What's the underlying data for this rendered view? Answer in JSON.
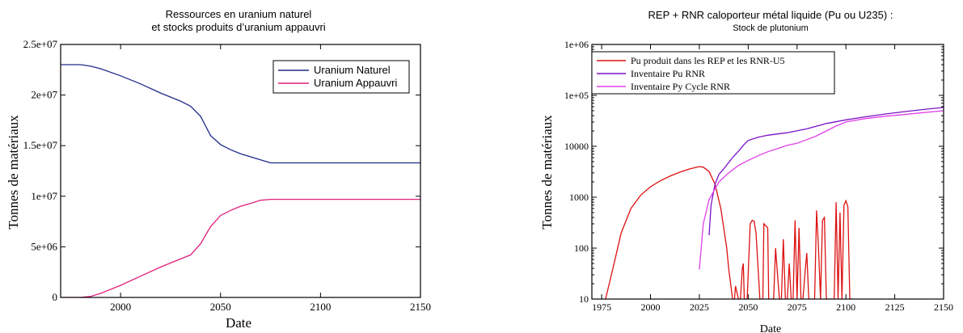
{
  "chart_data": [
    {
      "type": "line",
      "title": "Ressources en uranium naturel",
      "subtitle": "et stocks produits d’uranium appauvri",
      "xlabel": "Date",
      "ylabel": "Tonnes de matériaux",
      "xlim": [
        1970,
        2150
      ],
      "ylim": [
        0,
        25000000
      ],
      "x_ticks": [
        2000,
        2050,
        2100,
        2150
      ],
      "y_ticks": [
        0,
        5000000,
        10000000,
        15000000,
        20000000,
        25000000
      ],
      "y_tick_labels": [
        "0",
        "5e+06",
        "1e+07",
        "1.5e+07",
        "2e+07",
        "2.5e+07"
      ],
      "grid": false,
      "legend_position": "top-right",
      "series": [
        {
          "name": "Uranium Naturel",
          "color": "#1f2a8a",
          "x": [
            1970,
            1980,
            1985,
            1990,
            2000,
            2010,
            2020,
            2030,
            2035,
            2040,
            2045,
            2050,
            2055,
            2060,
            2065,
            2070,
            2075,
            2080,
            2100,
            2125,
            2150
          ],
          "y": [
            23000000,
            23000000,
            22850000,
            22600000,
            21900000,
            21100000,
            20200000,
            19400000,
            18900000,
            17900000,
            16000000,
            15100000,
            14600000,
            14200000,
            13900000,
            13600000,
            13300000,
            13300000,
            13300000,
            13300000,
            13300000
          ]
        },
        {
          "name": "Uranium Appauvri",
          "color": "#e0207a",
          "x": [
            1970,
            1980,
            1985,
            1990,
            2000,
            2010,
            2020,
            2030,
            2035,
            2040,
            2045,
            2050,
            2055,
            2060,
            2065,
            2070,
            2075,
            2080,
            2100,
            2125,
            2150
          ],
          "y": [
            0,
            0,
            100000,
            400000,
            1200000,
            2100000,
            3000000,
            3800000,
            4200000,
            5300000,
            7000000,
            8100000,
            8600000,
            9000000,
            9300000,
            9600000,
            9700000,
            9700000,
            9700000,
            9700000,
            9700000
          ]
        }
      ]
    },
    {
      "type": "line",
      "title": "REP + RNR caloporteur métal liquide (Pu ou U235) :",
      "subtitle": "Stock de plutonium",
      "xlabel": "Date",
      "ylabel": "Tonnes de matériaux",
      "xlim": [
        1970,
        2150
      ],
      "ylim": [
        10,
        1000000
      ],
      "y_scale": "log",
      "x_ticks": [
        1975,
        2000,
        2025,
        2050,
        2075,
        2100,
        2125,
        2150
      ],
      "y_ticks": [
        10,
        100,
        1000,
        10000,
        100000,
        1000000
      ],
      "y_tick_labels": [
        "10",
        "100",
        "1000",
        "10000",
        "1e+05",
        "1e+06"
      ],
      "grid": false,
      "legend_position": "top-left",
      "series": [
        {
          "name": "Pu produit dans les REP et les RNR-U5",
          "color": "#dd1111",
          "x": [
            1977,
            1980,
            1985,
            1990,
            1995,
            2000,
            2005,
            2010,
            2015,
            2020,
            2025,
            2027,
            2030,
            2033,
            2036,
            2039,
            2040,
            2042,
            2042.5,
            2043,
            2043.5,
            2045,
            2046,
            2047,
            2047.5,
            2048,
            2049,
            2049.5,
            2050,
            2051,
            2052,
            2053,
            2054,
            2056,
            2057,
            2057.5,
            2058,
            2060,
            2060.5,
            2061,
            2062,
            2063,
            2064,
            2065,
            2066,
            2067,
            2068,
            2069,
            2070,
            2071,
            2072,
            2073,
            2074,
            2075,
            2076,
            2077,
            2078,
            2079,
            2080,
            2081,
            2082,
            2083,
            2084,
            2085,
            2086,
            2087,
            2088,
            2089,
            2090,
            2091,
            2092,
            2093,
            2094,
            2095,
            2096,
            2097,
            2098,
            2099,
            2100,
            2101,
            2102,
            2103,
            2104
          ],
          "y": [
            10,
            30,
            200,
            600,
            1100,
            1600,
            2100,
            2600,
            3100,
            3600,
            4000,
            3900,
            3200,
            1800,
            600,
            100,
            40,
            10,
            10,
            10,
            18,
            10,
            10,
            40,
            50,
            10,
            10,
            10,
            30,
            300,
            350,
            340,
            200,
            10,
            10,
            10,
            300,
            250,
            10,
            10,
            10,
            10,
            100,
            30,
            10,
            10,
            150,
            10,
            10,
            50,
            10,
            10,
            350,
            10,
            250,
            10,
            10,
            30,
            80,
            10,
            10,
            10,
            10,
            550,
            100,
            10,
            350,
            400,
            10,
            10,
            10,
            10,
            10,
            800,
            10,
            500,
            10,
            700,
            850,
            650,
            10,
            10,
            10
          ]
        },
        {
          "name": "Inventaire Pu RNR",
          "color": "#7a12c8",
          "x": [
            2030,
            2031,
            2033,
            2035,
            2038,
            2040,
            2042,
            2045,
            2048,
            2050,
            2055,
            2060,
            2070,
            2080,
            2090,
            2100,
            2110,
            2120,
            2130,
            2140,
            2150
          ],
          "y": [
            180,
            700,
            1800,
            2800,
            3800,
            4800,
            6000,
            8000,
            11000,
            13000,
            15000,
            16500,
            18500,
            22000,
            28000,
            33000,
            38000,
            43000,
            48000,
            53000,
            58000
          ]
        },
        {
          "name": "Inventaire Py Cycle RNR",
          "color": "#e040e8",
          "x": [
            2025,
            2027,
            2030,
            2035,
            2040,
            2045,
            2050,
            2055,
            2060,
            2065,
            2070,
            2075,
            2080,
            2085,
            2090,
            2095,
            2100,
            2110,
            2120,
            2130,
            2140,
            2150
          ],
          "y": [
            38,
            300,
            900,
            2000,
            3000,
            4200,
            5300,
            6500,
            7800,
            9000,
            10500,
            11500,
            13500,
            16000,
            20000,
            25000,
            30000,
            35000,
            39000,
            42000,
            46000,
            50000
          ]
        }
      ]
    }
  ]
}
